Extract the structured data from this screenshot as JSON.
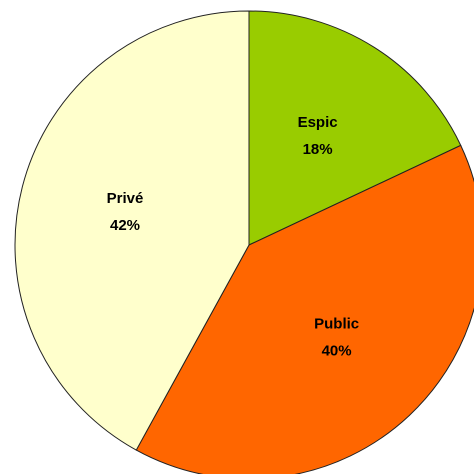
{
  "chart_data": {
    "type": "pie",
    "categories": [
      "Espic",
      "Public",
      "Privé"
    ],
    "values": [
      18,
      40,
      42
    ],
    "value_labels": [
      "18%",
      "40%",
      "42%"
    ],
    "colors": [
      "#99cc00",
      "#ff6600",
      "#ffffcc"
    ]
  }
}
